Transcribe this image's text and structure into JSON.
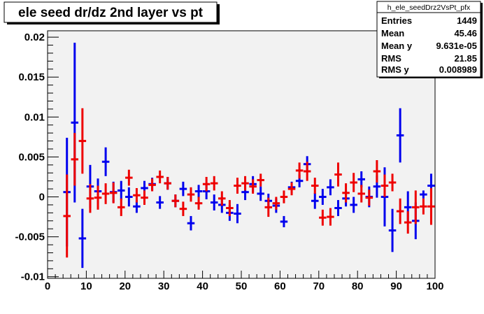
{
  "chart_data": {
    "type": "scatter",
    "title": "ele seed dr/dz 2nd layer vs pt",
    "xlabel": "",
    "ylabel": "",
    "xlim": [
      0,
      100
    ],
    "ylim": [
      -0.0102,
      0.0208
    ],
    "x_ticks": [
      0,
      10,
      20,
      30,
      40,
      50,
      60,
      70,
      80,
      90,
      100
    ],
    "x_tick_labels": [
      "0",
      "10",
      "20",
      "30",
      "40",
      "50",
      "60",
      "70",
      "80",
      "90",
      "100"
    ],
    "y_ticks": [
      -0.01,
      -0.005,
      0,
      0.005,
      0.01,
      0.015,
      0.02
    ],
    "y_tick_labels": [
      "-0.01",
      "-0.005",
      "0",
      "0.005",
      "0.01",
      "0.015",
      "0.02"
    ],
    "grid": false,
    "stats_box": {
      "name": "h_ele_seedDrz2VsPt_pfx",
      "rows": [
        {
          "label": "Entries",
          "value": "1449"
        },
        {
          "label": "Mean",
          "value": "45.46"
        },
        {
          "label": "Mean y",
          "value": "9.631e-05"
        },
        {
          "label": "RMS",
          "value": "21.85"
        },
        {
          "label": "RMS y",
          "value": "0.008989"
        }
      ]
    },
    "series": [
      {
        "color": "#0000ee",
        "points": [
          {
            "x": 5,
            "y": 0.0006,
            "err": 0.0068
          },
          {
            "x": 7,
            "y": 0.0093,
            "err": 0.01
          },
          {
            "x": 9,
            "y": -0.0052,
            "err": 0.0037
          },
          {
            "x": 11,
            "y": 0.0013,
            "err": 0.0027
          },
          {
            "x": 13,
            "y": 0.0007,
            "err": 0.0016
          },
          {
            "x": 15,
            "y": 0.0044,
            "err": 0.0018
          },
          {
            "x": 17,
            "y": 0.0006,
            "err": 0.0013
          },
          {
            "x": 19,
            "y": 0.0008,
            "err": 0.0012
          },
          {
            "x": 21,
            "y": 0.0,
            "err": 0.0012
          },
          {
            "x": 23,
            "y": -0.0012,
            "err": 0.0008
          },
          {
            "x": 25,
            "y": 0.0011,
            "err": 0.0009
          },
          {
            "x": 27,
            "y": 0.0016,
            "err": 0.0008
          },
          {
            "x": 29,
            "y": -0.0007,
            "err": 0.0008
          },
          {
            "x": 31,
            "y": 0.0017,
            "err": 0.0008
          },
          {
            "x": 33,
            "y": -0.0005,
            "err": 0.0008
          },
          {
            "x": 35,
            "y": 0.001,
            "err": 0.0009
          },
          {
            "x": 37,
            "y": -0.0033,
            "err": 0.0009
          },
          {
            "x": 39,
            "y": 0.0007,
            "err": 0.0008
          },
          {
            "x": 41,
            "y": 0.0007,
            "err": 0.001
          },
          {
            "x": 43,
            "y": -0.0007,
            "err": 0.001
          },
          {
            "x": 45,
            "y": -0.001,
            "err": 0.001
          },
          {
            "x": 47,
            "y": -0.002,
            "err": 0.001
          },
          {
            "x": 49,
            "y": -0.0021,
            "err": 0.0012
          },
          {
            "x": 51,
            "y": 0.0006,
            "err": 0.001
          },
          {
            "x": 53,
            "y": 0.0016,
            "err": 0.001
          },
          {
            "x": 55,
            "y": 0.0004,
            "err": 0.0009
          },
          {
            "x": 57,
            "y": -0.0005,
            "err": 0.0009
          },
          {
            "x": 59,
            "y": -0.0011,
            "err": 0.0009
          },
          {
            "x": 61,
            "y": -0.0031,
            "err": 0.0007
          },
          {
            "x": 63,
            "y": 0.0012,
            "err": 0.0007
          },
          {
            "x": 65,
            "y": 0.002,
            "err": 0.0008
          },
          {
            "x": 67,
            "y": 0.0041,
            "err": 0.001
          },
          {
            "x": 69,
            "y": -0.0005,
            "err": 0.001
          },
          {
            "x": 71,
            "y": 0.0,
            "err": 0.001
          },
          {
            "x": 73,
            "y": 0.0012,
            "err": 0.001
          },
          {
            "x": 75,
            "y": -0.0014,
            "err": 0.001
          },
          {
            "x": 77,
            "y": -0.0002,
            "err": 0.001
          },
          {
            "x": 79,
            "y": -0.001,
            "err": 0.001
          },
          {
            "x": 81,
            "y": 0.0022,
            "err": 0.001
          },
          {
            "x": 83,
            "y": 0.0,
            "err": 0.0013
          },
          {
            "x": 85,
            "y": 0.0013,
            "err": 0.0014
          },
          {
            "x": 87,
            "y": 0.0,
            "err": 0.0037
          },
          {
            "x": 89,
            "y": -0.0042,
            "err": 0.0027
          },
          {
            "x": 91,
            "y": 0.0077,
            "err": 0.0034
          },
          {
            "x": 93,
            "y": -0.0013,
            "err": 0.002
          },
          {
            "x": 95,
            "y": -0.003,
            "err": 0.0023
          },
          {
            "x": 97,
            "y": 0.0003,
            "err": 0.0005
          },
          {
            "x": 99,
            "y": 0.0014,
            "err": 0.0015
          }
        ]
      },
      {
        "color": "#ee0000",
        "points": [
          {
            "x": 5,
            "y": -0.0024,
            "err": 0.0052
          },
          {
            "x": 7,
            "y": 0.0047,
            "err": 0.0033
          },
          {
            "x": 9,
            "y": 0.007,
            "err": 0.0041
          },
          {
            "x": 11,
            "y": -0.0002,
            "err": 0.0018
          },
          {
            "x": 13,
            "y": -0.0001,
            "err": 0.0015
          },
          {
            "x": 15,
            "y": 0.0004,
            "err": 0.0013
          },
          {
            "x": 17,
            "y": 0.0005,
            "err": 0.0013
          },
          {
            "x": 19,
            "y": -0.0013,
            "err": 0.0011
          },
          {
            "x": 21,
            "y": 0.0024,
            "err": 0.001
          },
          {
            "x": 23,
            "y": 0.0002,
            "err": 0.0009
          },
          {
            "x": 25,
            "y": -0.0001,
            "err": 0.0009
          },
          {
            "x": 27,
            "y": 0.0015,
            "err": 0.0008
          },
          {
            "x": 29,
            "y": 0.0025,
            "err": 0.0008
          },
          {
            "x": 31,
            "y": 0.0017,
            "err": 0.0008
          },
          {
            "x": 33,
            "y": -0.0005,
            "err": 0.0008
          },
          {
            "x": 35,
            "y": -0.0015,
            "err": 0.0009
          },
          {
            "x": 37,
            "y": 0.0003,
            "err": 0.0009
          },
          {
            "x": 39,
            "y": -0.0008,
            "err": 0.0008
          },
          {
            "x": 41,
            "y": 0.0016,
            "err": 0.0009
          },
          {
            "x": 43,
            "y": 0.0017,
            "err": 0.0009
          },
          {
            "x": 45,
            "y": -0.0002,
            "err": 0.0009
          },
          {
            "x": 47,
            "y": -0.0014,
            "err": 0.001
          },
          {
            "x": 49,
            "y": 0.0014,
            "err": 0.001
          },
          {
            "x": 51,
            "y": 0.0017,
            "err": 0.0009
          },
          {
            "x": 53,
            "y": 0.0013,
            "err": 0.0009
          },
          {
            "x": 55,
            "y": 0.0021,
            "err": 0.0008
          },
          {
            "x": 57,
            "y": -0.0013,
            "err": 0.0012
          },
          {
            "x": 59,
            "y": -0.0008,
            "err": 0.0008
          },
          {
            "x": 61,
            "y": -0.0,
            "err": 0.0008
          },
          {
            "x": 63,
            "y": 0.001,
            "err": 0.0008
          },
          {
            "x": 65,
            "y": 0.0033,
            "err": 0.001
          },
          {
            "x": 67,
            "y": 0.0032,
            "err": 0.0012
          },
          {
            "x": 69,
            "y": 0.0014,
            "err": 0.001
          },
          {
            "x": 71,
            "y": -0.0026,
            "err": 0.001
          },
          {
            "x": 73,
            "y": -0.0025,
            "err": 0.0011
          },
          {
            "x": 75,
            "y": 0.0028,
            "err": 0.0015
          },
          {
            "x": 77,
            "y": 0.0005,
            "err": 0.0012
          },
          {
            "x": 79,
            "y": 0.0018,
            "err": 0.0012
          },
          {
            "x": 81,
            "y": 0.0004,
            "err": 0.0011
          },
          {
            "x": 83,
            "y": -0.0001,
            "err": 0.001
          },
          {
            "x": 85,
            "y": 0.0032,
            "err": 0.0014
          },
          {
            "x": 87,
            "y": 0.0014,
            "err": 0.0014
          },
          {
            "x": 89,
            "y": 0.0018,
            "err": 0.0011
          },
          {
            "x": 91,
            "y": -0.0018,
            "err": 0.0016
          },
          {
            "x": 93,
            "y": -0.0032,
            "err": 0.0014
          },
          {
            "x": 95,
            "y": -0.0013,
            "err": 0.0021
          },
          {
            "x": 97,
            "y": -0.0012,
            "err": 0.001
          },
          {
            "x": 99,
            "y": -0.0012,
            "err": 0.0023
          }
        ]
      }
    ]
  }
}
